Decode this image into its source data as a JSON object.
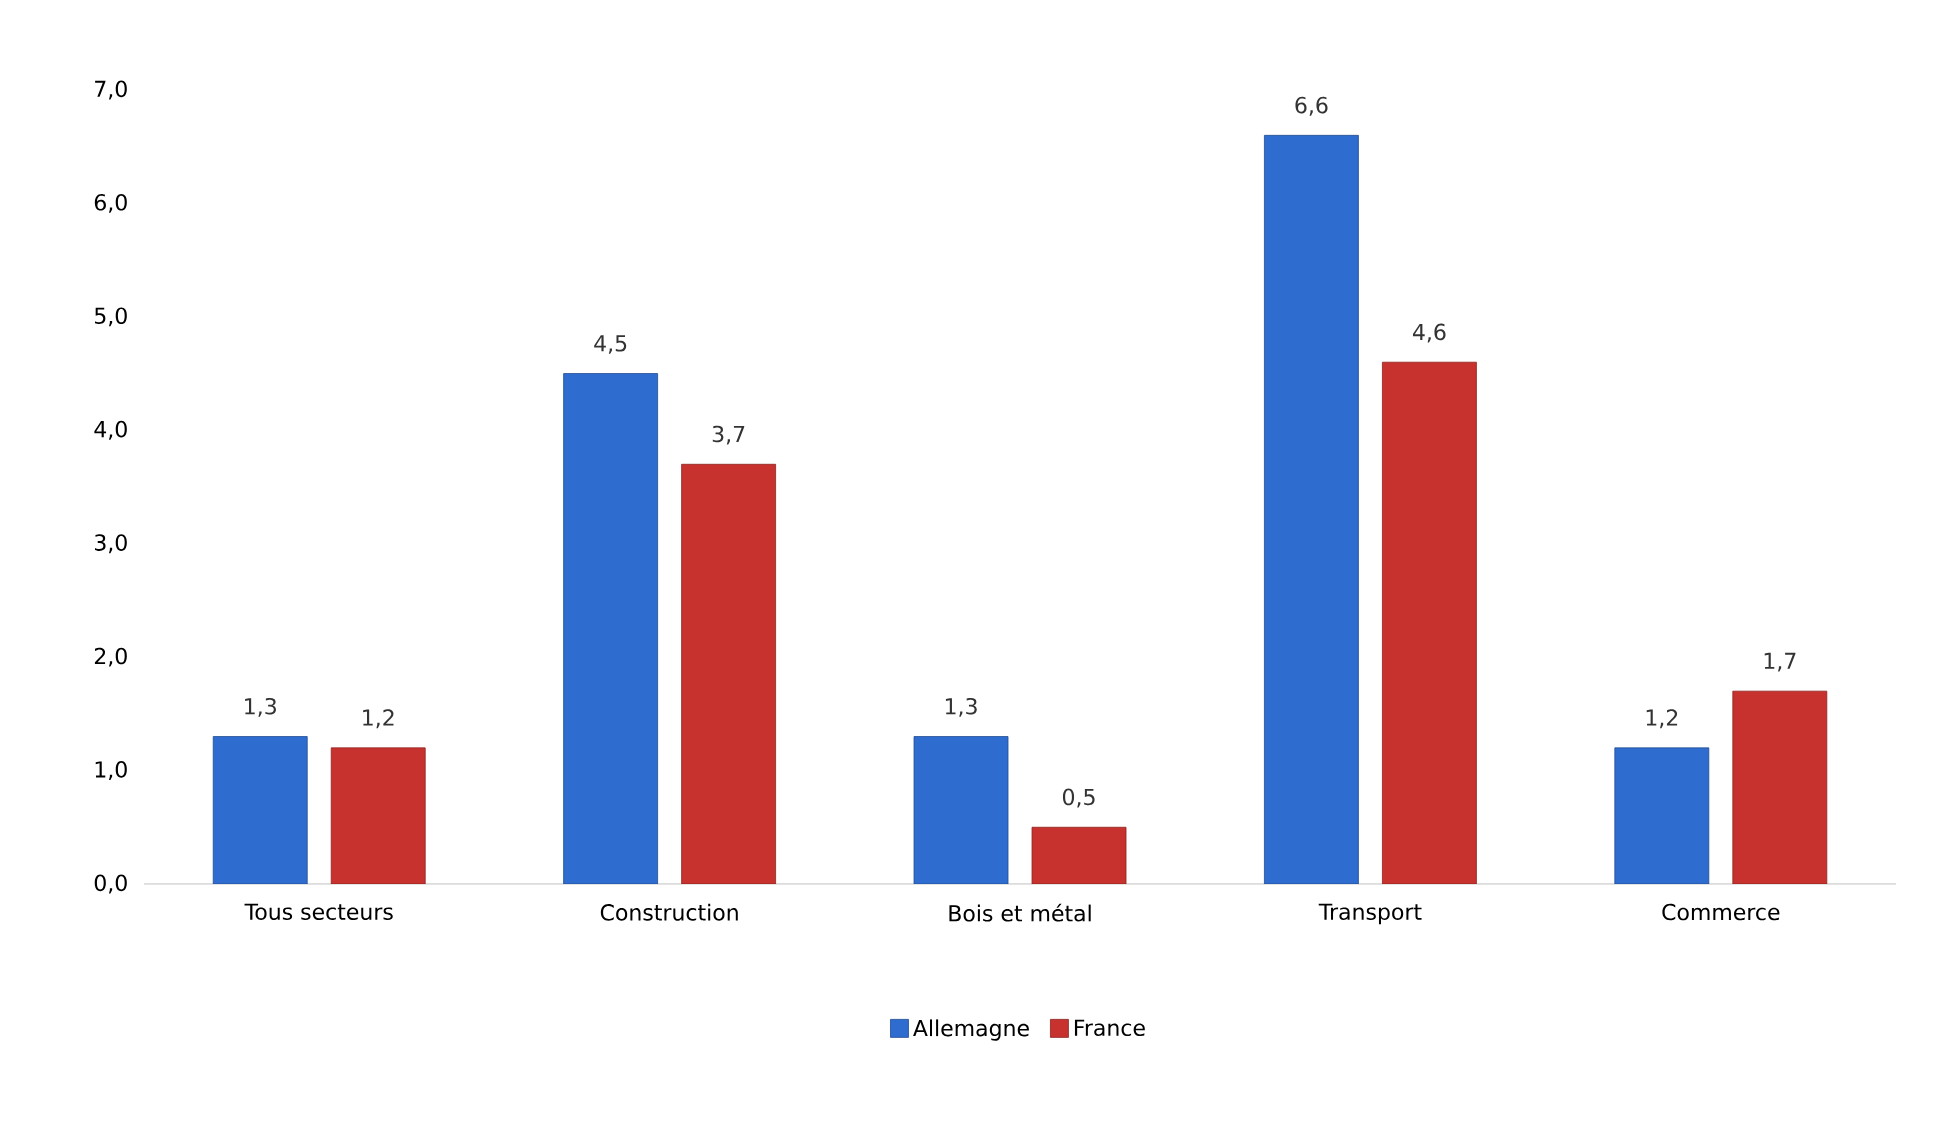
{
  "chart_data": {
    "type": "bar",
    "categories": [
      "Tous secteurs",
      "Construction",
      "Bois et métal",
      "Transport",
      "Commerce"
    ],
    "series": [
      {
        "name": "Allemagne",
        "color": "#2f6ccf",
        "values": [
          1.3,
          4.5,
          1.3,
          6.6,
          1.2
        ],
        "value_labels": [
          "1,3",
          "4,5",
          "1,3",
          "6,6",
          "1,2"
        ]
      },
      {
        "name": "France",
        "color": "#c8322e",
        "values": [
          1.2,
          3.7,
          0.5,
          4.6,
          1.7
        ],
        "value_labels": [
          "1,2",
          "3,7",
          "0,5",
          "4,6",
          "1,7"
        ]
      }
    ],
    "ylim": [
      0,
      7
    ],
    "yticks": [
      {
        "value": 0,
        "label": "0,0"
      },
      {
        "value": 1,
        "label": "1,0"
      },
      {
        "value": 2,
        "label": "2,0"
      },
      {
        "value": 3,
        "label": "3,0"
      },
      {
        "value": 4,
        "label": "4,0"
      },
      {
        "value": 5,
        "label": "5,0"
      },
      {
        "value": 6,
        "label": "6,0"
      },
      {
        "value": 7,
        "label": "7,0"
      }
    ],
    "legend": "bottom"
  }
}
